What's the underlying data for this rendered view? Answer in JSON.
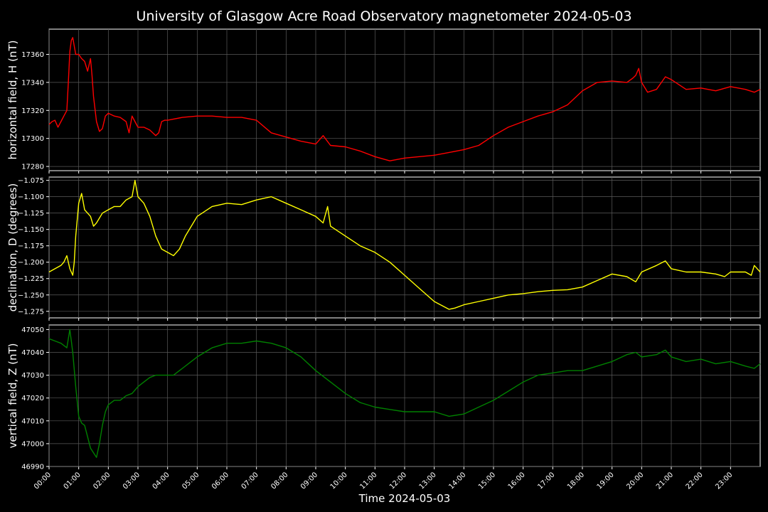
{
  "title": "University of Glasgow Acre Road Observatory magnetometer 2024-05-03",
  "chart_data": {
    "type": "line",
    "xlabel": "Time 2024-05-03",
    "x_ticks": [
      "00:00",
      "01:00",
      "02:00",
      "03:00",
      "04:00",
      "05:00",
      "06:00",
      "07:00",
      "08:00",
      "09:00",
      "10:00",
      "11:00",
      "12:00",
      "13:00",
      "14:00",
      "15:00",
      "16:00",
      "17:00",
      "18:00",
      "19:00",
      "20:00",
      "21:00",
      "22:00",
      "23:00"
    ],
    "xlim_hours": [
      0,
      24
    ],
    "grid": true,
    "panels": [
      {
        "ylabel": "horizontal field, H (nT)",
        "ylim": [
          17277,
          17378
        ],
        "y_ticks": [
          17280,
          17300,
          17320,
          17340,
          17360
        ],
        "y_tick_labels": [
          "17280",
          "17300",
          "17320",
          "17340",
          "17360"
        ],
        "series": [
          {
            "color": "#ff0000",
            "x": [
              0,
              0.1,
              0.2,
              0.3,
              0.4,
              0.5,
              0.6,
              0.65,
              0.7,
              0.75,
              0.8,
              0.9,
              1.0,
              1.1,
              1.2,
              1.3,
              1.4,
              1.45,
              1.5,
              1.6,
              1.7,
              1.8,
              1.9,
              2.0,
              2.2,
              2.4,
              2.6,
              2.7,
              2.8,
              2.9,
              3.0,
              3.2,
              3.4,
              3.6,
              3.7,
              3.8,
              3.9,
              4.0,
              4.5,
              5.0,
              5.5,
              6.0,
              6.5,
              7.0,
              7.5,
              8.0,
              8.5,
              9.0,
              9.25,
              9.5,
              10.0,
              10.5,
              11.0,
              11.5,
              12.0,
              12.5,
              13.0,
              13.5,
              14.0,
              14.5,
              15.0,
              15.5,
              16.0,
              16.5,
              17.0,
              17.5,
              18.0,
              18.5,
              19.0,
              19.5,
              19.7,
              19.8,
              19.9,
              20.0,
              20.2,
              20.5,
              20.8,
              21.0,
              21.5,
              22.0,
              22.5,
              23.0,
              23.5,
              23.8,
              24.0
            ],
            "y": [
              17310,
              17312,
              17313,
              17308,
              17312,
              17316,
              17320,
              17340,
              17362,
              17370,
              17372,
              17360,
              17360,
              17357,
              17355,
              17348,
              17357,
              17345,
              17330,
              17312,
              17305,
              17307,
              17316,
              17318,
              17316,
              17315,
              17312,
              17304,
              17316,
              17312,
              17308,
              17308,
              17306,
              17302,
              17304,
              17312,
              17313,
              17313,
              17315,
              17316,
              17316,
              17315,
              17315,
              17313,
              17304,
              17301,
              17298,
              17296,
              17302,
              17295,
              17294,
              17291,
              17287,
              17284,
              17286,
              17287,
              17288,
              17290,
              17292,
              17295,
              17302,
              17308,
              17312,
              17316,
              17319,
              17324,
              17334,
              17340,
              17341,
              17340,
              17343,
              17345,
              17350,
              17340,
              17333,
              17335,
              17344,
              17342,
              17335,
              17336,
              17334,
              17337,
              17335,
              17333,
              17335
            ]
          }
        ]
      },
      {
        "ylabel": "declination, D (degrees)",
        "ylim": [
          -1.285,
          -1.07
        ],
        "y_ticks": [
          -1.275,
          -1.25,
          -1.225,
          -1.2,
          -1.175,
          -1.15,
          -1.125,
          -1.1,
          -1.075
        ],
        "y_tick_labels": [
          "−1.275",
          "−1.250",
          "−1.225",
          "−1.200",
          "−1.175",
          "−1.150",
          "−1.125",
          "−1.100",
          "−1.075"
        ],
        "series": [
          {
            "color": "#ffff00",
            "x": [
              0,
              0.2,
              0.4,
              0.5,
              0.6,
              0.7,
              0.8,
              0.85,
              0.9,
              1.0,
              1.1,
              1.2,
              1.4,
              1.5,
              1.6,
              1.8,
              2.0,
              2.2,
              2.4,
              2.6,
              2.8,
              2.9,
              3.0,
              3.2,
              3.4,
              3.6,
              3.8,
              4.0,
              4.2,
              4.4,
              4.6,
              4.8,
              5.0,
              5.5,
              6.0,
              6.5,
              7.0,
              7.5,
              8.0,
              8.5,
              9.0,
              9.25,
              9.4,
              9.5,
              10.0,
              10.5,
              11.0,
              11.5,
              12.0,
              12.5,
              13.0,
              13.5,
              13.7,
              14.0,
              14.5,
              15.0,
              15.5,
              16.0,
              16.5,
              17.0,
              17.5,
              18.0,
              18.5,
              19.0,
              19.5,
              19.8,
              20.0,
              20.5,
              20.8,
              21.0,
              21.5,
              22.0,
              22.5,
              22.8,
              23.0,
              23.5,
              23.7,
              23.8,
              24.0
            ],
            "y": [
              -1.215,
              -1.21,
              -1.205,
              -1.2,
              -1.19,
              -1.21,
              -1.22,
              -1.2,
              -1.16,
              -1.11,
              -1.095,
              -1.12,
              -1.13,
              -1.145,
              -1.14,
              -1.125,
              -1.12,
              -1.115,
              -1.115,
              -1.105,
              -1.1,
              -1.075,
              -1.1,
              -1.11,
              -1.13,
              -1.16,
              -1.18,
              -1.185,
              -1.19,
              -1.18,
              -1.16,
              -1.145,
              -1.13,
              -1.115,
              -1.11,
              -1.112,
              -1.105,
              -1.1,
              -1.11,
              -1.12,
              -1.13,
              -1.14,
              -1.115,
              -1.145,
              -1.16,
              -1.175,
              -1.185,
              -1.2,
              -1.22,
              -1.24,
              -1.26,
              -1.272,
              -1.27,
              -1.265,
              -1.26,
              -1.255,
              -1.25,
              -1.248,
              -1.245,
              -1.243,
              -1.242,
              -1.238,
              -1.228,
              -1.218,
              -1.222,
              -1.23,
              -1.215,
              -1.205,
              -1.198,
              -1.21,
              -1.215,
              -1.215,
              -1.218,
              -1.222,
              -1.215,
              -1.215,
              -1.22,
              -1.205,
              -1.215
            ]
          }
        ]
      },
      {
        "ylabel": "vertical field, Z (nT)",
        "ylim": [
          46990,
          47052
        ],
        "y_ticks": [
          46990,
          47000,
          47010,
          47020,
          47030,
          47040,
          47050
        ],
        "y_tick_labels": [
          "46990",
          "47000",
          "47010",
          "47020",
          "47030",
          "47040",
          "47050"
        ],
        "series": [
          {
            "color": "#008000",
            "x": [
              0,
              0.2,
              0.4,
              0.6,
              0.7,
              0.75,
              0.8,
              0.9,
              1.0,
              1.1,
              1.2,
              1.3,
              1.4,
              1.5,
              1.6,
              1.7,
              1.8,
              1.9,
              2.0,
              2.2,
              2.4,
              2.6,
              2.8,
              3.0,
              3.2,
              3.4,
              3.6,
              3.8,
              4.0,
              4.2,
              4.5,
              5.0,
              5.5,
              6.0,
              6.5,
              7.0,
              7.5,
              8.0,
              8.5,
              9.0,
              9.5,
              10.0,
              10.5,
              11.0,
              11.5,
              12.0,
              12.5,
              13.0,
              13.5,
              14.0,
              14.5,
              15.0,
              15.5,
              16.0,
              16.5,
              17.0,
              17.5,
              18.0,
              18.5,
              19.0,
              19.5,
              19.8,
              20.0,
              20.5,
              20.8,
              21.0,
              21.5,
              22.0,
              22.5,
              23.0,
              23.5,
              23.8,
              24.0
            ],
            "y": [
              47046,
              47045,
              47044,
              47042,
              47050,
              47045,
              47040,
              47025,
              47012,
              47009,
              47008,
              47003,
              46998,
              46996,
              46994,
              47000,
              47008,
              47014,
              47017,
              47019,
              47019,
              47021,
              47022,
              47025,
              47027,
              47029,
              47030,
              47030,
              47030,
              47030,
              47033,
              47038,
              47042,
              47044,
              47044,
              47045,
              47044,
              47042,
              47038,
              47032,
              47027,
              47022,
              47018,
              47016,
              47015,
              47014,
              47014,
              47014,
              47012,
              47013,
              47016,
              47019,
              47023,
              47027,
              47030,
              47031,
              47032,
              47032,
              47034,
              47036,
              47039,
              47040,
              47038,
              47039,
              47041,
              47038,
              47036,
              47037,
              47035,
              47036,
              47034,
              47033,
              47035
            ]
          }
        ]
      }
    ]
  }
}
